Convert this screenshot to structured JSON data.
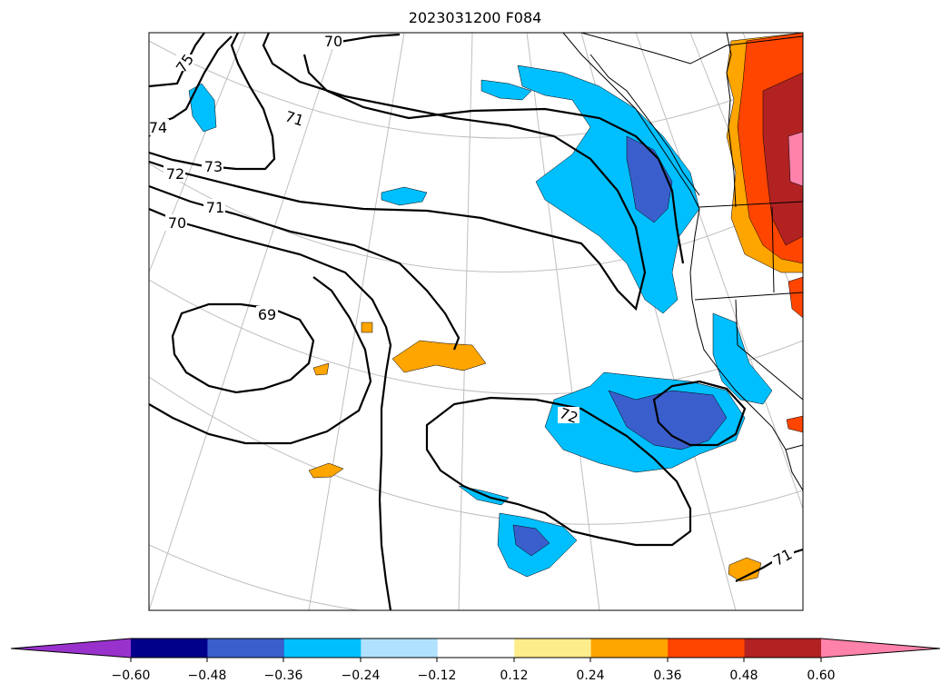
{
  "title": "2023031200 F084",
  "contour_labels": {
    "c75": "75",
    "c74": "74",
    "c73": "73",
    "c72a": "72",
    "c71a": "71",
    "c70a": "70",
    "c70b": "70",
    "c71b": "71",
    "c69": "69",
    "c72b": "72",
    "c71c": "71"
  },
  "colorbar": {
    "colors": [
      "#9932cc",
      "#00008b",
      "#3a5fcd",
      "#00bfff",
      "#b0e2ff",
      "#ffffff",
      "#ffec8b",
      "#ffa500",
      "#ff4500",
      "#b22222",
      "#ff82ab"
    ],
    "ticks": [
      "−0.60",
      "−0.48",
      "−0.36",
      "−0.24",
      "−0.12",
      "0.12",
      "0.24",
      "0.36",
      "0.48",
      "0.60"
    ]
  },
  "map_colors": {
    "land_lines": "#000000",
    "graticule": "#bfbfbf",
    "neg_light": "#00bfff",
    "neg_dark": "#3a5fcd",
    "pos_orange": "#ffa500",
    "pos_redorange": "#ff4500",
    "pos_darkred": "#b22222",
    "pos_pink": "#ff82ab"
  }
}
